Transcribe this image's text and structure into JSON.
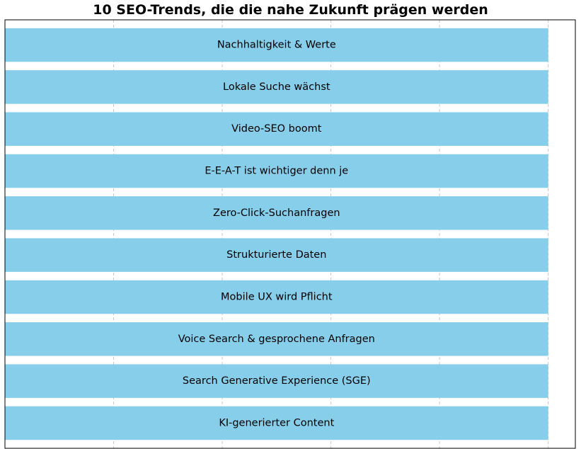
{
  "chart_data": {
    "type": "bar",
    "orientation": "horizontal",
    "title": "10 SEO-Trends, die die nahe Zukunft prägen werden",
    "xlabel": "",
    "ylabel": "",
    "categories": [
      "KI-generierter Content",
      "Search Generative Experience (SGE)",
      "Voice Search & gesprochene Anfragen",
      "Mobile UX wird Pflicht",
      "Strukturierte Daten",
      "Zero-Click-Suchanfragen",
      "E-E-A-T ist wichtiger denn je",
      "Video-SEO boomt",
      "Lokale Suche wächst",
      "Nachhaltigkeit & Werte"
    ],
    "values": [
      1,
      1,
      1,
      1,
      1,
      1,
      1,
      1,
      1,
      1
    ],
    "xlim": [
      0,
      1.05
    ],
    "grid": true,
    "bar_color": "#87CEEB",
    "label_position": "bar-center"
  }
}
